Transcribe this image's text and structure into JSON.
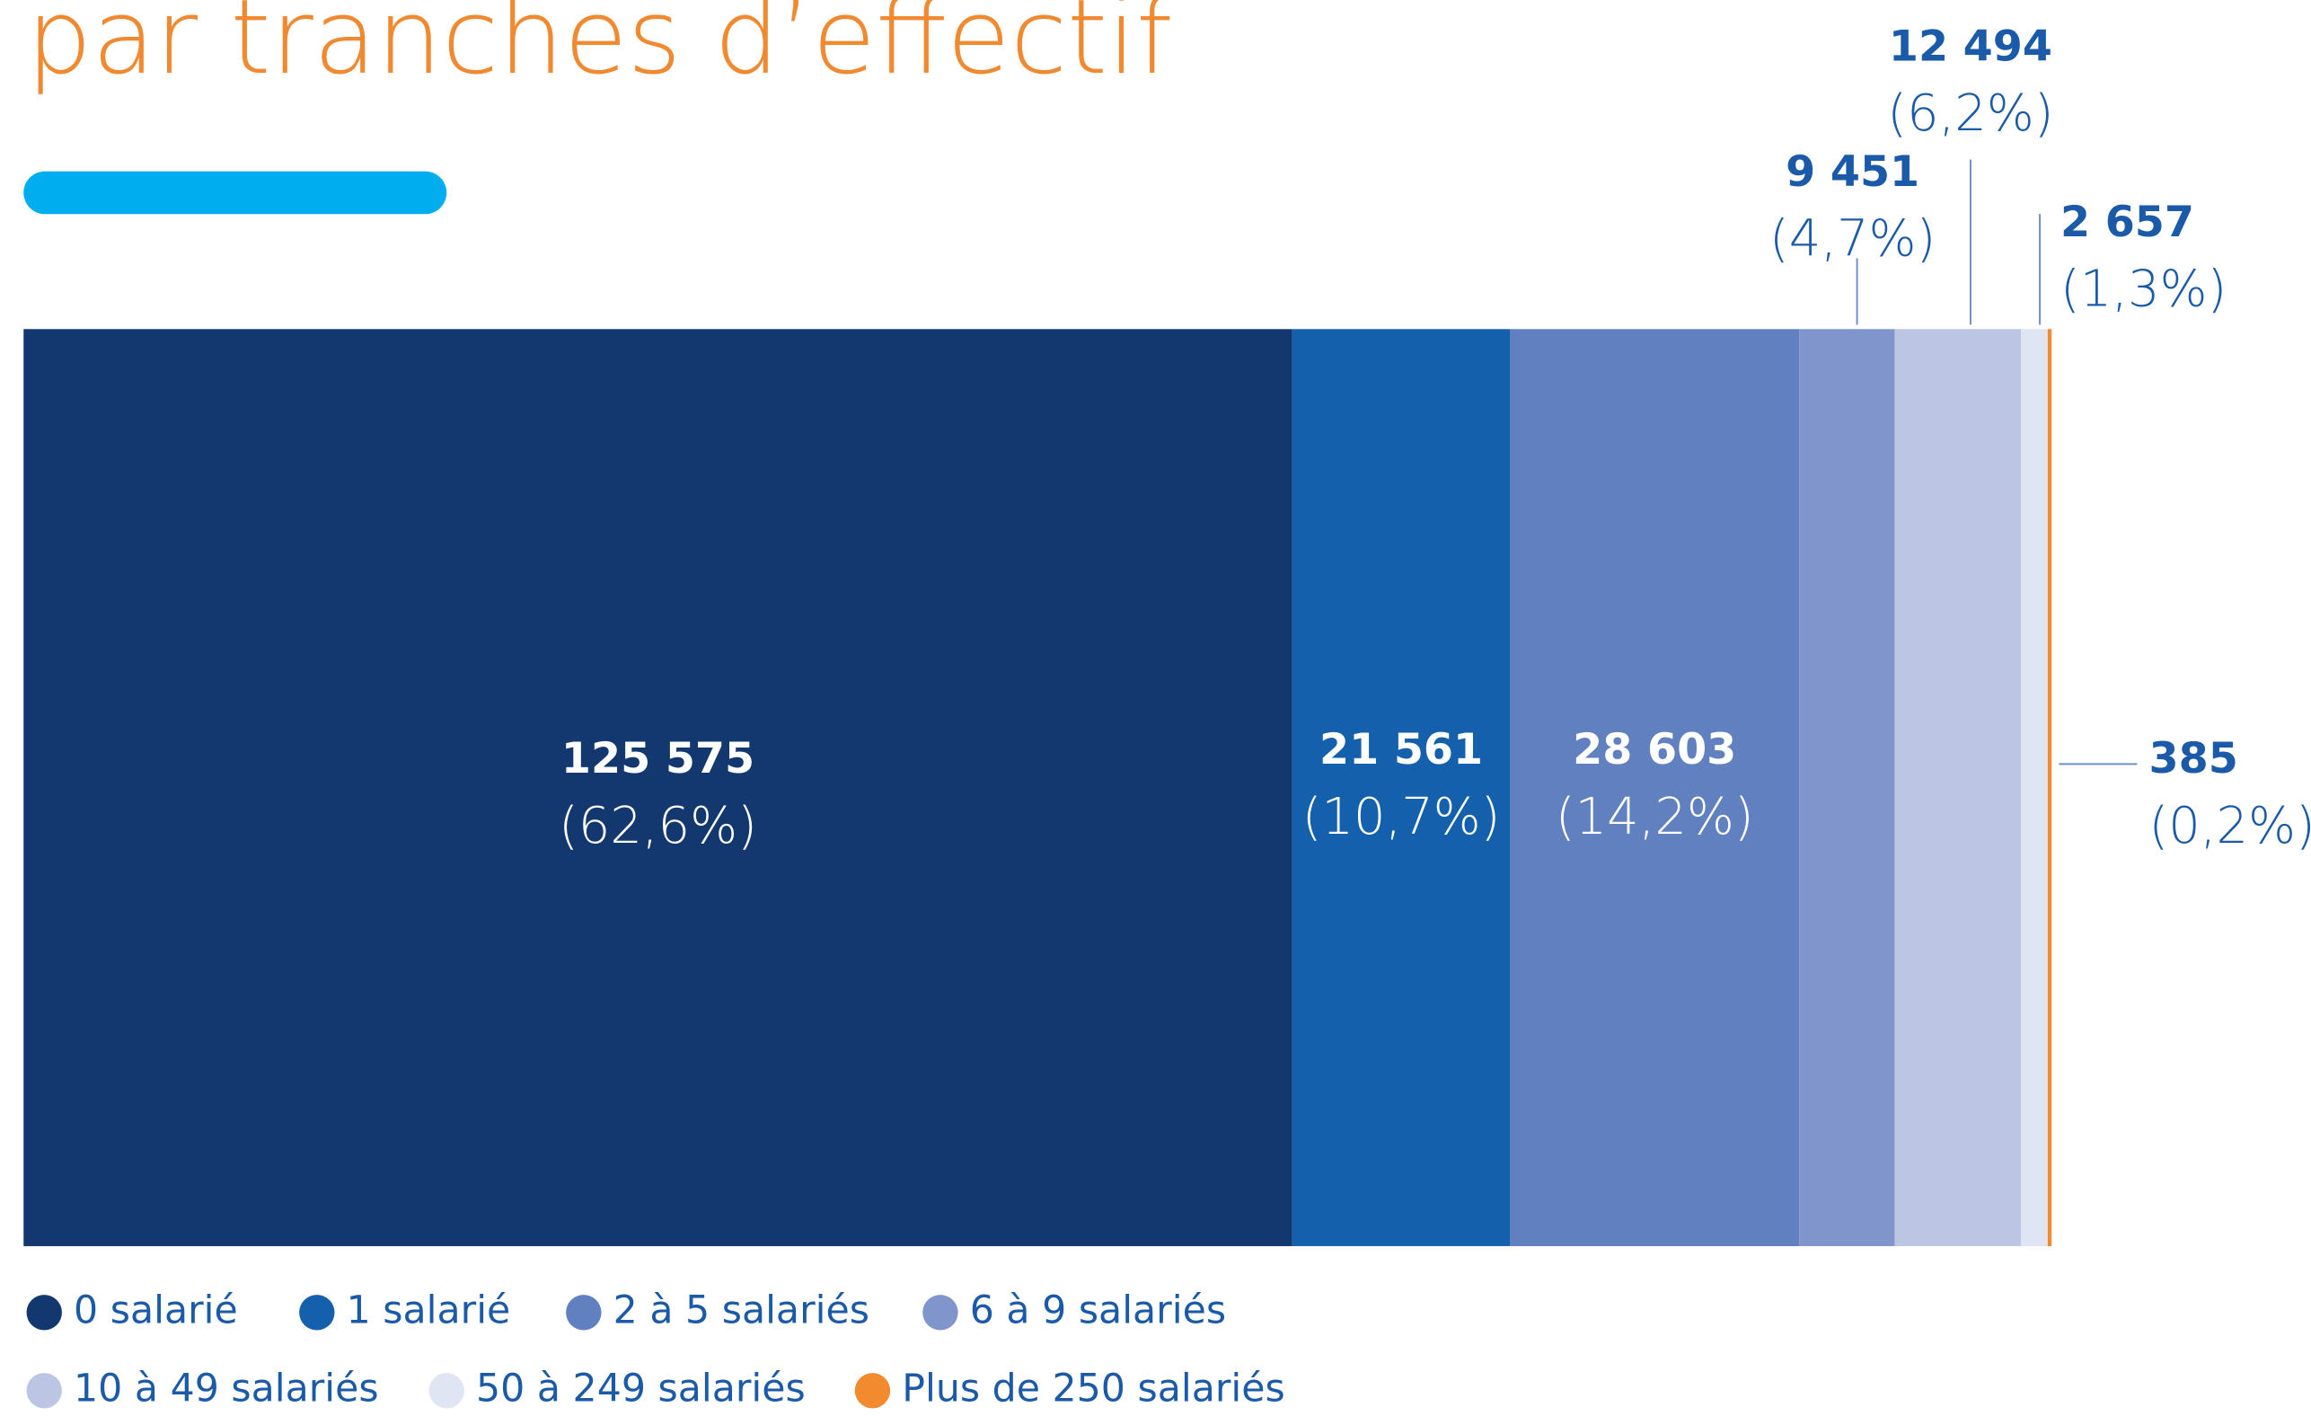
{
  "chart_data": {
    "type": "bar",
    "title": "par tranches d’effectif",
    "series": [
      {
        "name": "0 salarié",
        "color": "#13386f",
        "values": [
          125575
        ],
        "value_labels": [
          "125 575"
        ],
        "shares": [
          62.6
        ],
        "share_labels": [
          "(62,6%)"
        ]
      },
      {
        "name": "1 salarié",
        "color": "#1560ad",
        "values": [
          21561
        ],
        "value_labels": [
          "21 561"
        ],
        "shares": [
          10.7
        ],
        "share_labels": [
          "(10,7%)"
        ]
      },
      {
        "name": "2 à 5 salariés",
        "color": "#6080c0",
        "values": [
          28603
        ],
        "value_labels": [
          "28 603"
        ],
        "shares": [
          14.2
        ],
        "share_labels": [
          "(14,2%)"
        ]
      },
      {
        "name": "6 à 9 salariés",
        "color": "#7f95cc",
        "values": [
          9451
        ],
        "value_labels": [
          "9 451"
        ],
        "shares": [
          4.7
        ],
        "share_labels": [
          "(4,7%)"
        ]
      },
      {
        "name": "10 à 49 salariés",
        "color": "#bcc5e3",
        "values": [
          12494
        ],
        "value_labels": [
          "12 494"
        ],
        "shares": [
          6.2
        ],
        "share_labels": [
          "(6,2%)"
        ]
      },
      {
        "name": "50 à 249 salariés",
        "color": "#e0e5f3",
        "values": [
          2657
        ],
        "value_labels": [
          "2 657"
        ],
        "shares": [
          1.3
        ],
        "share_labels": [
          "(1,3%)"
        ]
      },
      {
        "name": "Plus de 250 salariés",
        "color": "#f28b30",
        "values": [
          385
        ],
        "value_labels": [
          "385"
        ],
        "shares": [
          0.2
        ],
        "share_labels": [
          "(0,2%)"
        ]
      }
    ]
  }
}
